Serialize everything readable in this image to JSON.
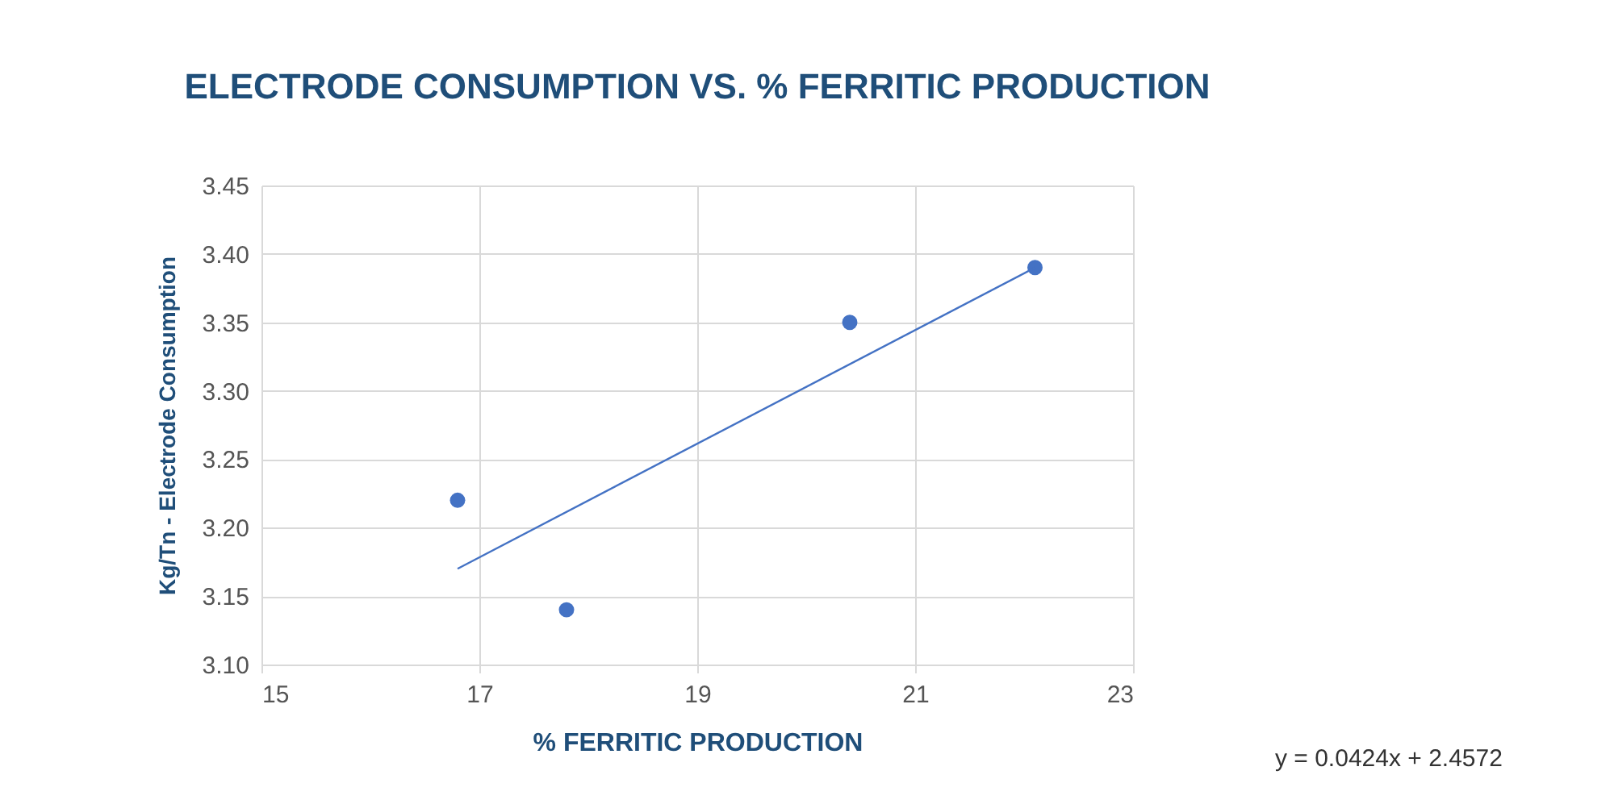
{
  "chart_data": {
    "type": "scatter",
    "title": "ELECTRODE CONSUMPTION VS. % FERRITIC PRODUCTION",
    "xlabel": "% FERRITIC PRODUCTION",
    "ylabel": "Kg/Tn - Electrode Consumption",
    "series": [
      {
        "color": "#4472c4",
        "marker": "circle",
        "x": [
          16.8,
          17.8,
          20.4,
          22.1
        ],
        "values": [
          3.22,
          3.14,
          3.35,
          3.39
        ]
      },
      {
        "type": "line",
        "color": "#4472c4",
        "x": [
          16.8,
          22.1
        ],
        "values": [
          3.17,
          3.39
        ]
      }
    ],
    "xlim": [
      15,
      23
    ],
    "xticks": [
      15,
      17,
      19,
      21,
      23
    ],
    "ylim": [
      3.1,
      3.45
    ],
    "yticks": [
      {
        "value": 3.1,
        "label": "3.10"
      },
      {
        "value": 3.15,
        "label": "3.15"
      },
      {
        "value": 3.2,
        "label": "3.20"
      },
      {
        "value": 3.25,
        "label": "3.25"
      },
      {
        "value": 3.3,
        "label": "3.30"
      },
      {
        "value": 3.35,
        "label": "3.35"
      },
      {
        "value": 3.4,
        "label": "3.40"
      },
      {
        "value": 3.45,
        "label": "3.45"
      }
    ],
    "grid": true,
    "line_style": "solid",
    "annotations": [
      "y = 0.0424x + 2.4572"
    ]
  }
}
